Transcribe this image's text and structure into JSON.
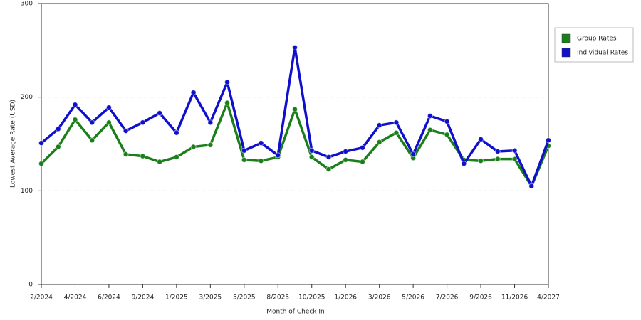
{
  "chart_data": {
    "type": "line",
    "x_label": "Month of Check In",
    "y_label": "Lowest Average Rate (USD)",
    "categories": [
      "2/2024",
      null,
      "4/2024",
      null,
      "6/2024",
      null,
      "9/2024",
      null,
      "1/2025",
      null,
      "3/2025",
      null,
      "5/2025",
      null,
      "8/2025",
      null,
      "10/2025",
      null,
      "1/2026",
      null,
      "3/2026",
      null,
      "5/2026",
      null,
      "7/2026",
      null,
      "9/2026",
      null,
      "11/2026",
      null,
      "4/2027"
    ],
    "series": [
      {
        "name": "Group Rates",
        "color": "#1a7f1a",
        "values": [
          129,
          147,
          176,
          154,
          173,
          139,
          137,
          131,
          136,
          147,
          149,
          194,
          133,
          132,
          136,
          187,
          136,
          123,
          133,
          131,
          152,
          162,
          135,
          165,
          160,
          133,
          132,
          134,
          134,
          105,
          148
        ]
      },
      {
        "name": "Individual Rates",
        "color": "#1010cc",
        "values": [
          151,
          166,
          192,
          173,
          189,
          164,
          173,
          183,
          162,
          205,
          173,
          216,
          143,
          151,
          138,
          253,
          143,
          136,
          142,
          146,
          170,
          173,
          139,
          180,
          174,
          129,
          155,
          142,
          143,
          105,
          154
        ]
      }
    ],
    "ylim": [
      0,
      300
    ],
    "yticks": [
      0,
      100,
      200,
      300
    ],
    "grid": true,
    "legend": "right"
  }
}
